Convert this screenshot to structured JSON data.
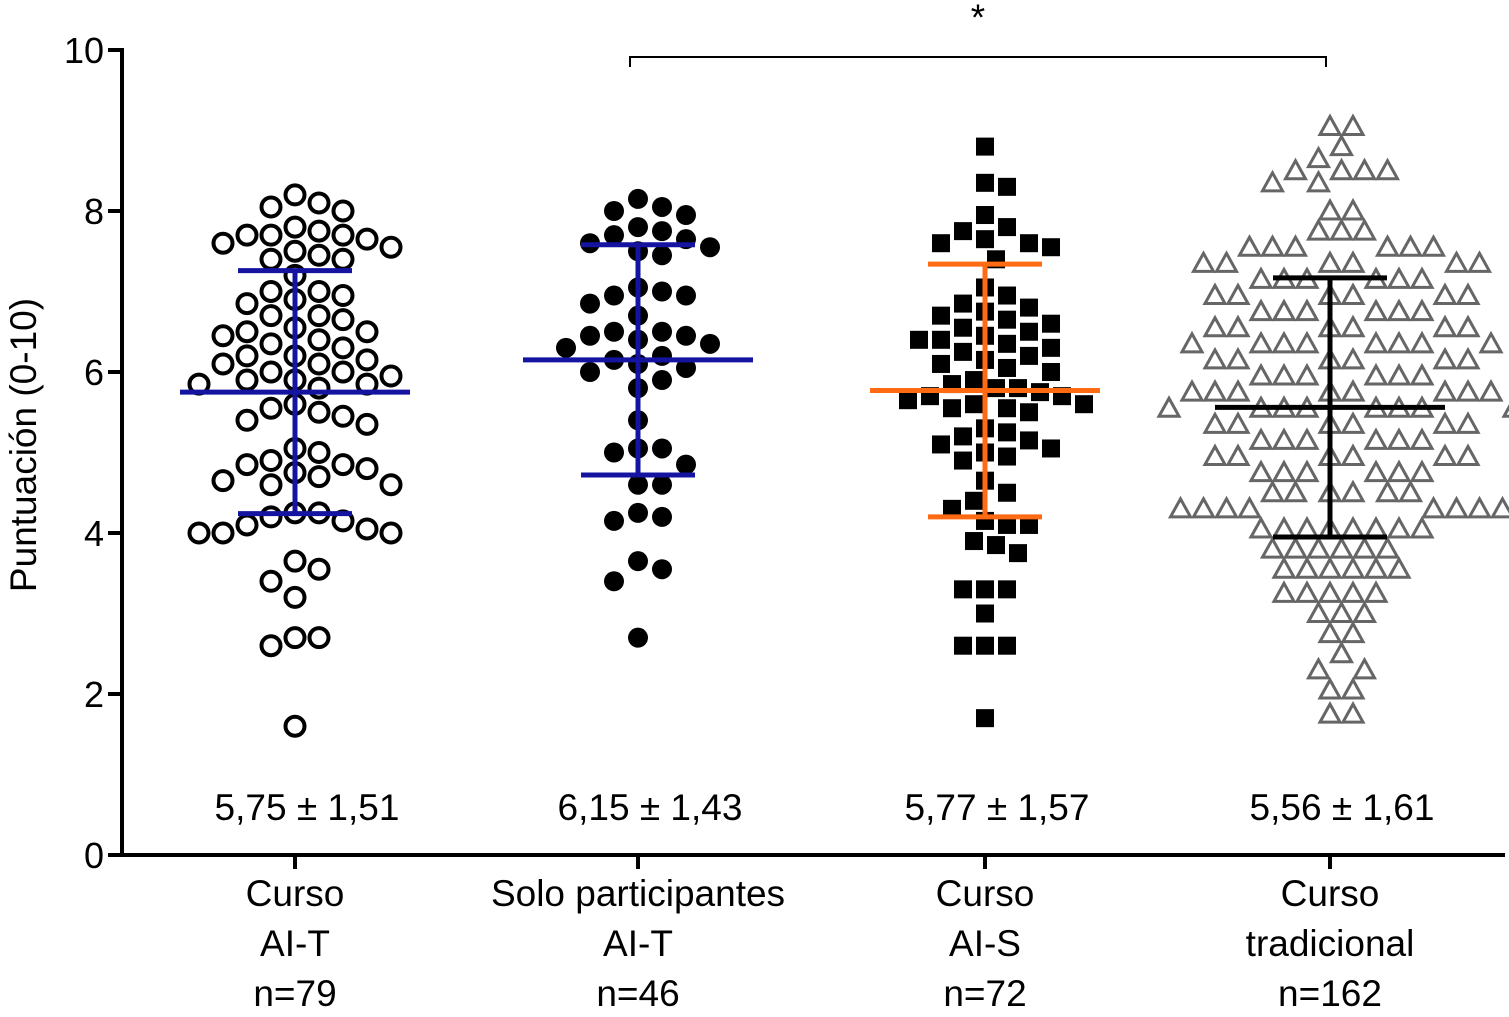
{
  "chart_data": {
    "type": "scatter",
    "subtype": "dot-plot-with-mean-sd",
    "ylabel": "Puntuación (0-10)",
    "ylim": [
      0,
      10
    ],
    "yticks": [
      "0",
      "2",
      "4",
      "6",
      "8",
      "10"
    ],
    "grid": false,
    "significance": {
      "label": "*",
      "from_group": 1,
      "to_group": 3
    },
    "groups": [
      {
        "label_lines": [
          "Curso",
          "AI-T",
          "n=79"
        ],
        "n": 79,
        "mean": 5.75,
        "sd": 1.51,
        "stat_label": "5,75 ± 1,51",
        "marker": "open-circle",
        "marker_color": "#000000",
        "bar_color": "#1414a0",
        "values": [
          8.2,
          8.1,
          8.05,
          8.0,
          7.8,
          7.75,
          7.7,
          7.7,
          7.7,
          7.65,
          7.6,
          7.55,
          7.5,
          7.45,
          7.4,
          7.4,
          7.2,
          7.0,
          7.0,
          6.95,
          6.9,
          6.85,
          6.7,
          6.7,
          6.65,
          6.55,
          6.5,
          6.5,
          6.45,
          6.4,
          6.35,
          6.3,
          6.2,
          6.2,
          6.15,
          6.1,
          6.1,
          6.0,
          6.0,
          5.95,
          5.9,
          5.9,
          5.85,
          5.85,
          5.8,
          5.6,
          5.55,
          5.5,
          5.45,
          5.4,
          5.35,
          5.05,
          5.0,
          4.9,
          4.85,
          4.85,
          4.8,
          4.75,
          4.7,
          4.65,
          4.6,
          4.6,
          4.25,
          4.25,
          4.2,
          4.15,
          4.1,
          4.05,
          4.0,
          4.0,
          4.0,
          3.65,
          3.55,
          3.4,
          3.2,
          2.7,
          2.7,
          2.6,
          1.6
        ]
      },
      {
        "label_lines": [
          "Solo participantes",
          "AI-T",
          "n=46"
        ],
        "n": 46,
        "mean": 6.15,
        "sd": 1.43,
        "stat_label": "6,15 ± 1,43",
        "marker": "filled-circle",
        "marker_color": "#000000",
        "bar_color": "#1414a0",
        "values": [
          8.15,
          8.05,
          8.0,
          7.95,
          7.8,
          7.75,
          7.7,
          7.65,
          7.6,
          7.55,
          7.5,
          7.45,
          7.05,
          7.0,
          6.95,
          6.95,
          6.85,
          6.7,
          6.5,
          6.5,
          6.45,
          6.45,
          6.4,
          6.35,
          6.3,
          6.2,
          6.15,
          6.1,
          6.05,
          6.0,
          5.9,
          5.8,
          5.4,
          5.05,
          5.05,
          5.0,
          4.85,
          4.6,
          4.6,
          4.25,
          4.2,
          4.15,
          3.65,
          3.55,
          3.4,
          2.7
        ]
      },
      {
        "label_lines": [
          "Curso",
          "AI-S",
          "n=72"
        ],
        "n": 72,
        "mean": 5.77,
        "sd": 1.57,
        "stat_label": "5,77 ± 1,57",
        "marker": "filled-square",
        "marker_color": "#000000",
        "bar_color": "#ff6a13",
        "values": [
          8.8,
          8.35,
          8.3,
          7.95,
          7.8,
          7.75,
          7.65,
          7.6,
          7.6,
          7.55,
          7.4,
          7.05,
          6.95,
          6.85,
          6.8,
          6.75,
          6.7,
          6.65,
          6.6,
          6.55,
          6.5,
          6.45,
          6.4,
          6.4,
          6.35,
          6.3,
          6.25,
          6.2,
          6.15,
          6.1,
          6.05,
          6.0,
          5.9,
          5.85,
          5.8,
          5.8,
          5.75,
          5.7,
          5.7,
          5.65,
          5.6,
          5.6,
          5.55,
          5.55,
          5.5,
          5.3,
          5.25,
          5.2,
          5.15,
          5.1,
          5.05,
          5.0,
          4.95,
          4.9,
          4.65,
          4.5,
          4.4,
          4.3,
          4.15,
          4.1,
          4.1,
          3.9,
          3.85,
          3.75,
          3.3,
          3.3,
          3.3,
          3.0,
          2.6,
          2.6,
          2.6,
          1.7
        ]
      },
      {
        "label_lines": [
          "Curso",
          "tradicional",
          "n=162"
        ],
        "n": 162,
        "mean": 5.56,
        "sd": 1.61,
        "stat_label": "5,56 ± 1,61",
        "marker": "open-triangle",
        "marker_color": "#666666",
        "bar_color": "#000000",
        "value_counts": [
          [
            9.05,
            2
          ],
          [
            8.8,
            1
          ],
          [
            8.65,
            1
          ],
          [
            8.5,
            4
          ],
          [
            8.35,
            2
          ],
          [
            8.0,
            2
          ],
          [
            7.75,
            3
          ],
          [
            7.55,
            6
          ],
          [
            7.35,
            6
          ],
          [
            7.15,
            6
          ],
          [
            6.95,
            6
          ],
          [
            6.75,
            6
          ],
          [
            6.55,
            6
          ],
          [
            6.35,
            8
          ],
          [
            6.15,
            6
          ],
          [
            5.95,
            6
          ],
          [
            5.75,
            8
          ],
          [
            5.55,
            8
          ],
          [
            5.35,
            6
          ],
          [
            5.15,
            6
          ],
          [
            4.95,
            6
          ],
          [
            4.75,
            6
          ],
          [
            4.5,
            6
          ],
          [
            4.3,
            8
          ],
          [
            4.05,
            8
          ],
          [
            3.8,
            6
          ],
          [
            3.55,
            6
          ],
          [
            3.25,
            5
          ],
          [
            3.0,
            3
          ],
          [
            2.75,
            2
          ],
          [
            2.5,
            1
          ],
          [
            2.3,
            2
          ],
          [
            2.05,
            2
          ],
          [
            1.75,
            2
          ]
        ]
      }
    ]
  }
}
